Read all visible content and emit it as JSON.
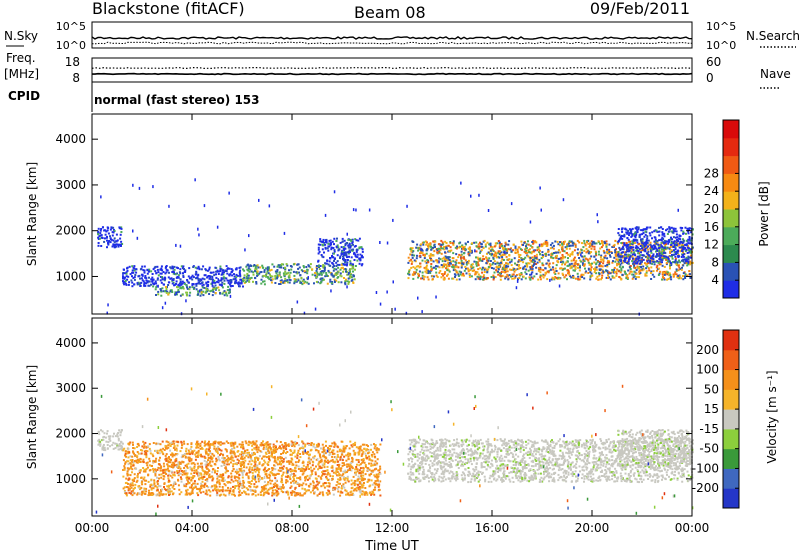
{
  "header": {
    "station": "Blackstone (fitACF)",
    "beam": "Beam 08",
    "date": "09/Feb/2011"
  },
  "summary": {
    "nsky_label": "N.Sky",
    "nsky_ticks": [
      "10^5",
      "10^0"
    ],
    "nsearch_label": "N.Search",
    "nsearch_ticks": [
      "10^5",
      "10^0"
    ],
    "freq_label": "Freq.",
    "freq_unit": "[MHz]",
    "freq_ticks": [
      "18",
      "8"
    ],
    "nave_label": "Nave",
    "nave_ticks": [
      "60",
      "0"
    ],
    "cpid_label": "CPID",
    "cpid_text": "normal (fast stereo) 153"
  },
  "chart_data": [
    {
      "type": "heatmap",
      "name": "power",
      "ylabel": "Slant Range [km]",
      "xlabel": "Time UT",
      "xlim": [
        0,
        24
      ],
      "ylim": [
        180,
        4550
      ],
      "xticks": [
        0,
        4,
        8,
        12,
        16,
        20,
        24
      ],
      "xtick_labels": [
        "00:00",
        "04:00",
        "08:00",
        "12:00",
        "16:00",
        "20:00",
        "00:00"
      ],
      "yticks": [
        1000,
        2000,
        3000,
        4000
      ],
      "ytick_labels": [
        "1000",
        "2000",
        "3000",
        "4000"
      ],
      "colorbar": {
        "label": "Power [dB]",
        "ticks": [
          "4",
          "8",
          "12",
          "16",
          "20",
          "24",
          "28"
        ],
        "colors": [
          "#1f2de6",
          "#2a52b5",
          "#2c8a4e",
          "#4cab5a",
          "#8dc43a",
          "#f3b21a",
          "#f78a12",
          "#f05a14",
          "#e52a10",
          "#d90a0a"
        ]
      },
      "echo_regions": [
        {
          "t": [
            0.2,
            1.2
          ],
          "r": [
            1650,
            2100
          ],
          "level": "weak"
        },
        {
          "t": [
            1.2,
            6.0
          ],
          "r": [
            800,
            1250
          ],
          "level": "weak"
        },
        {
          "t": [
            2.5,
            5.5
          ],
          "r": [
            600,
            800
          ],
          "level": "moderate"
        },
        {
          "t": [
            6.0,
            10.5
          ],
          "r": [
            850,
            1300
          ],
          "level": "moderate"
        },
        {
          "t": [
            9.0,
            10.8
          ],
          "r": [
            1250,
            1850
          ],
          "level": "weak"
        },
        {
          "t": [
            12.6,
            24.0
          ],
          "r": [
            950,
            1800
          ],
          "level": "strong"
        },
        {
          "t": [
            21.0,
            24.0
          ],
          "r": [
            1300,
            2100
          ],
          "level": "weak"
        }
      ]
    },
    {
      "type": "heatmap",
      "name": "velocity",
      "ylabel": "Slant Range [km]",
      "xlabel": "Time UT",
      "xlim": [
        0,
        24
      ],
      "ylim": [
        180,
        4550
      ],
      "xticks": [
        0,
        4,
        8,
        12,
        16,
        20,
        24
      ],
      "xtick_labels": [
        "00:00",
        "04:00",
        "08:00",
        "12:00",
        "16:00",
        "20:00",
        "00:00"
      ],
      "yticks": [
        1000,
        2000,
        3000,
        4000
      ],
      "ytick_labels": [
        "1000",
        "2000",
        "3000",
        "4000"
      ],
      "colorbar": {
        "label": "Velocity [m s⁻¹]",
        "ticks": [
          "200",
          "100",
          "50",
          "15",
          "-15",
          "-50",
          "-100",
          "-200"
        ],
        "colors": [
          "#2436c8",
          "#3f68c0",
          "#3a9a3a",
          "#8ccf3c",
          "#c8c8c0",
          "#f5b42a",
          "#f5901a",
          "#f06018",
          "#e03010"
        ]
      },
      "echo_regions": [
        {
          "t": [
            0.2,
            1.2
          ],
          "r": [
            1650,
            2100
          ],
          "sign": "ground"
        },
        {
          "t": [
            1.2,
            11.5
          ],
          "r": [
            650,
            1850
          ],
          "sign": "negative"
        },
        {
          "t": [
            12.6,
            24.0
          ],
          "r": [
            950,
            1900
          ],
          "sign": "ground"
        },
        {
          "t": [
            21.0,
            24.0
          ],
          "r": [
            1300,
            2100
          ],
          "sign": "ground"
        }
      ]
    }
  ],
  "colors": {
    "ground_scatter": "#c8c8c0",
    "axis": "#000000"
  }
}
